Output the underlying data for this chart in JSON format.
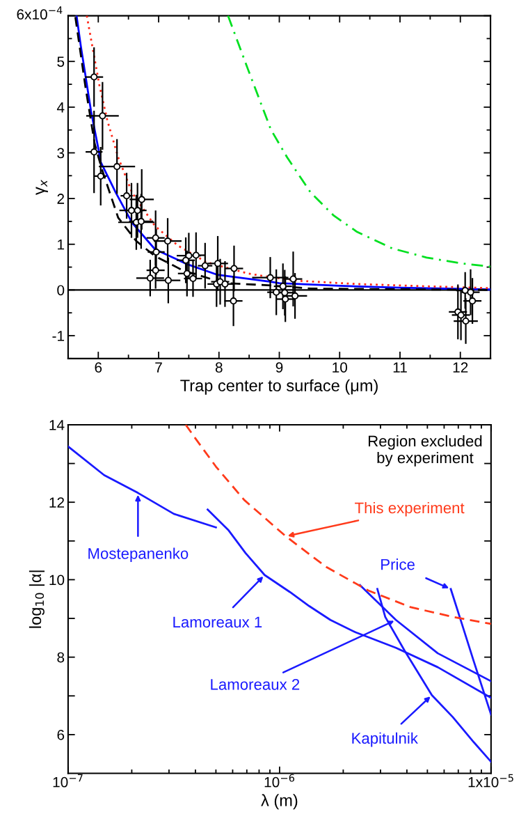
{
  "chart_data": [
    {
      "type": "line",
      "xlabel": "Trap center to surface (μm)",
      "ylabel": "γ$_{x}$",
      "xlim": [
        5.5,
        12.5
      ],
      "xticks": [
        6,
        7,
        8,
        9,
        10,
        11,
        12
      ],
      "ylim": [
        -1.5,
        6
      ],
      "yticks": [
        -1,
        0,
        1,
        2,
        3,
        4,
        5,
        {
          "value": 6,
          "label": null
        }
      ],
      "grid": false,
      "annotations": [
        "6x10$^{−4}$"
      ],
      "ref_lines": [
        {
          "axis": "y",
          "value": 0,
          "color": "#000000",
          "line_style": "solid"
        }
      ],
      "series": [
        {
          "type": "scatter",
          "color": "#000000",
          "marker": "circle",
          "x": [
            5.93,
            6.07,
            5.93,
            6.04,
            6.31,
            6.47,
            6.55,
            6.65,
            6.72,
            6.63,
            6.71,
            6.95,
            6.96,
            7.15,
            6.95,
            6.86,
            7.16,
            7.5,
            7.62,
            7.45,
            7.47,
            7.57,
            7.77,
            7.98,
            7.96,
            8.02,
            8.1,
            8.25,
            8.24,
            8.85,
            8.95,
            9.06,
            9.09,
            9.1,
            9.23,
            9.26,
            12.08,
            12.17,
            12.2,
            11.96,
            12.01,
            12.09
          ],
          "values": [
            4.66,
            3.81,
            3.02,
            2.49,
            2.7,
            2.06,
            1.74,
            1.74,
            1.98,
            1.48,
            1.5,
            1.14,
            0.83,
            1.07,
            0.43,
            0.26,
            0.21,
            0.75,
            0.76,
            0.65,
            0.36,
            0.25,
            0.53,
            0.58,
            0.13,
            0.18,
            0.13,
            0.47,
            -0.24,
            0.27,
            -0.05,
            0.08,
            -0.06,
            -0.2,
            0.24,
            -0.13,
            -0.01,
            -0.05,
            -0.24,
            -0.48,
            -0.55,
            -0.68
          ],
          "xerrors": [
            0.15,
            0.27,
            0.14,
            0.1,
            0.3,
            0.1,
            0.2,
            0.15,
            0.2,
            0.3,
            0.2,
            0.15,
            0.14,
            0.23,
            0.15,
            0.23,
            0.2,
            0.2,
            0.15,
            0.15,
            0.15,
            0.15,
            0.12,
            0.17,
            0.15,
            0.15,
            0.15,
            0.15,
            0.15,
            0.3,
            0.15,
            0.15,
            0.15,
            0.15,
            0.15,
            0.2,
            0.15,
            0.15,
            0.15,
            0.15,
            0.15,
            0.2
          ],
          "errors": [
            0.65,
            0.74,
            0.9,
            0.64,
            0.6,
            0.5,
            0.6,
            0.6,
            0.66,
            0.6,
            0.6,
            0.6,
            0.5,
            0.5,
            0.4,
            0.4,
            0.5,
            0.5,
            0.5,
            0.5,
            0.5,
            0.4,
            0.5,
            0.6,
            0.5,
            0.5,
            0.5,
            0.5,
            0.55,
            0.45,
            0.5,
            0.5,
            0.5,
            0.5,
            0.6,
            0.5,
            0.4,
            0.5,
            0.5,
            0.6,
            0.55,
            0.5
          ]
        },
        {
          "type": "line",
          "color": "#0000ff",
          "line_style": "solid",
          "x": [
            5.64,
            5.71,
            5.79,
            5.88,
            6.0,
            6.04,
            6.29,
            6.56,
            6.94,
            7.48,
            7.98,
            8.86,
            9.0,
            10.0,
            11.0,
            12.5
          ],
          "values": [
            6.0,
            5.34,
            4.67,
            3.91,
            3.1,
            2.8,
            2.13,
            1.47,
            0.89,
            0.56,
            0.33,
            0.18,
            0.15,
            0.09,
            0.05,
            0.01
          ]
        },
        {
          "type": "line",
          "color": "#000000",
          "line_style": "dashed",
          "x": [
            5.62,
            5.79,
            5.94,
            6.06,
            6.33,
            6.63,
            6.94,
            7.4,
            8.09,
            8.86,
            9.52,
            12.5
          ],
          "values": [
            5.97,
            4.42,
            3.2,
            2.64,
            1.58,
            1.07,
            0.74,
            0.43,
            0.15,
            0.1,
            0.03,
            0.0
          ]
        },
        {
          "type": "line",
          "color": "#ff2a1a",
          "line_style": "dotted",
          "x": [
            5.81,
            5.9,
            6.02,
            6.15,
            6.33,
            6.56,
            6.94,
            7.32,
            7.79,
            8.48,
            8.86,
            9.33,
            10.29,
            11.44,
            12.5
          ],
          "values": [
            6.0,
            5.34,
            4.47,
            3.71,
            2.9,
            2.13,
            1.4,
            0.97,
            0.61,
            0.36,
            0.28,
            0.2,
            0.13,
            0.08,
            0.04
          ]
        },
        {
          "type": "line",
          "color": "#00e020",
          "line_style": "dashdot",
          "x": [
            8.15,
            8.48,
            8.86,
            9.13,
            9.52,
            9.9,
            10.29,
            10.87,
            11.44,
            12.02,
            12.5
          ],
          "values": [
            6.0,
            4.83,
            3.51,
            2.9,
            2.13,
            1.63,
            1.27,
            0.91,
            0.71,
            0.58,
            0.51
          ]
        }
      ]
    },
    {
      "type": "line",
      "xlabel": "λ (m)",
      "ylabel": "log$_{10}$ |α|",
      "log": "x",
      "xlim": [
        1e-07,
        1e-05
      ],
      "xticks": [
        {
          "value": 1e-07,
          "label": "10$^{−7}$"
        },
        {
          "value": 1e-06,
          "label": "10$^{−6}$"
        },
        {
          "value": 1e-05,
          "label": "1x10$^{−5}$"
        }
      ],
      "ylim": [
        5,
        14
      ],
      "yticks": [
        6,
        {
          "value": 7,
          "label": null
        },
        8,
        {
          "value": 9,
          "label": null
        },
        10,
        {
          "value": 11,
          "label": null
        },
        12,
        {
          "value": 13,
          "label": null
        },
        14
      ],
      "grid": false,
      "annotations": [
        "Region excluded\nby experiment",
        {
          "text": "Mostepanenko",
          "x": 2.14e-07,
          "y": 12.24
        },
        {
          "text": "Lamoreaux 1",
          "x": 8.5e-07,
          "y": 10.12
        },
        {
          "text": "Lamoreaux 2",
          "x": 3.55e-06,
          "y": 8.96
        },
        {
          "text": "Kapitulnik",
          "x": 5.25e-06,
          "y": 7.02
        },
        {
          "text": "Price",
          "x": 6.45e-06,
          "y": 9.76
        },
        {
          "text": "This experiment",
          "x": 1.07e-06,
          "y": 11.12
        }
      ],
      "series": [
        {
          "color": "#1a1aff",
          "line_style": "solid",
          "x": [
            1e-07,
            1.48e-07,
            2.14e-07,
            3.16e-07,
            5e-07
          ],
          "values": [
            13.44,
            12.7,
            12.24,
            11.7,
            11.35
          ]
        },
        {
          "color": "#1a1aff",
          "line_style": "solid",
          "x": [
            4.57e-07,
            5.75e-07,
            6.9e-07,
            8.5e-07,
            1.12e-06,
            1.38e-06,
            1.74e-06,
            2.29e-06,
            3.55e-06,
            5.6e-06,
            1e-05
          ],
          "values": [
            11.81,
            11.27,
            10.69,
            10.12,
            9.68,
            9.32,
            8.96,
            8.64,
            8.24,
            7.74,
            6.95
          ]
        },
        {
          "color": "#1a1aff",
          "line_style": "solid",
          "x": [
            2.4e-06,
            3.55e-06,
            5.6e-06,
            1e-05
          ],
          "values": [
            9.86,
            8.96,
            8.1,
            7.38
          ]
        },
        {
          "color": "#1a1aff",
          "line_style": "solid",
          "x": [
            2.9e-06,
            3.16e-06,
            3.9e-06,
            5.25e-06,
            6.6e-06,
            8.3e-06,
            1e-05
          ],
          "values": [
            9.76,
            9.04,
            8.17,
            7.02,
            6.45,
            5.8,
            5.3
          ]
        },
        {
          "color": "#1a1aff",
          "line_style": "solid",
          "x": [
            6.45e-06,
            7.25e-06,
            8.3e-06,
            1e-05
          ],
          "values": [
            9.76,
            8.89,
            7.88,
            6.52
          ]
        },
        {
          "color": "#ff3a1a",
          "line_style": "dashed",
          "x": [
            3.6e-07,
            3.9e-07,
            5e-07,
            6.8e-07,
            1.07e-06,
            1.66e-06,
            2.63e-06,
            4.17e-06,
            6.6e-06,
            1e-05
          ],
          "values": [
            14.0,
            13.73,
            12.92,
            12.06,
            11.12,
            10.33,
            9.72,
            9.29,
            9.04,
            8.86
          ]
        }
      ]
    }
  ]
}
